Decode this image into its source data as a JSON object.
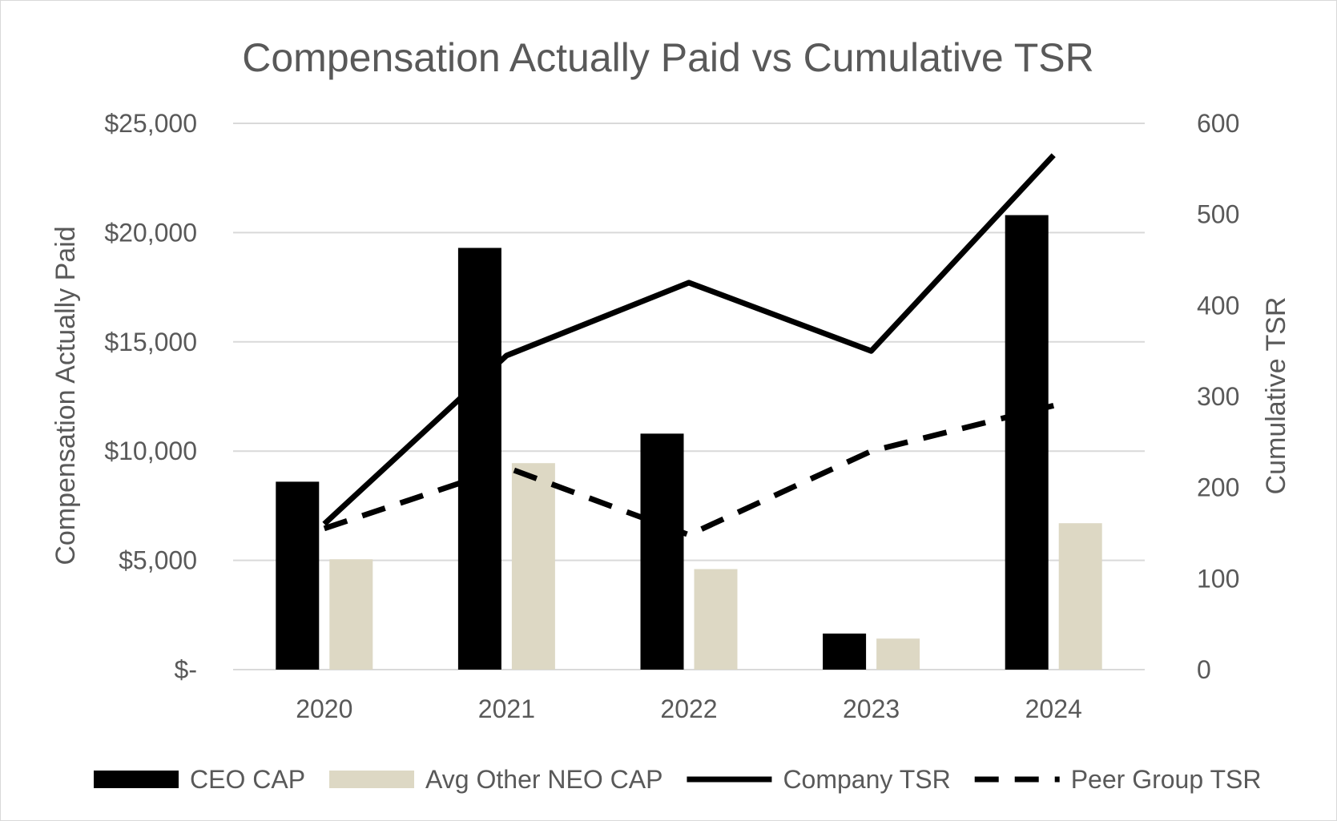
{
  "chart_data": {
    "type": "bar",
    "title": "Compensation Actually Paid vs Cumulative TSR",
    "categories": [
      "2020",
      "2021",
      "2022",
      "2023",
      "2024"
    ],
    "ylabel": "Compensation Actually Paid",
    "y2label": "Cumulative TSR",
    "ylim": [
      0,
      25000
    ],
    "y2lim": [
      0,
      600
    ],
    "yticks": [
      "$-",
      "$5,000",
      "$10,000",
      "$15,000",
      "$20,000",
      "$25,000"
    ],
    "y2ticks": [
      "0",
      "100",
      "200",
      "300",
      "400",
      "500",
      "600"
    ],
    "grid": true,
    "legend_position": "bottom",
    "series": [
      {
        "name": "CEO CAP",
        "kind": "bar",
        "axis": "left",
        "color": "#000000",
        "values": [
          8600,
          19300,
          10800,
          1650,
          20800
        ]
      },
      {
        "name": "Avg Other NEO CAP",
        "kind": "bar",
        "axis": "left",
        "color": "#ddd8c4",
        "values": [
          5050,
          9450,
          4600,
          1420,
          6700
        ]
      },
      {
        "name": "Company TSR",
        "kind": "line",
        "axis": "right",
        "color": "#000000",
        "dash": "solid",
        "values": [
          160,
          345,
          425,
          350,
          565
        ]
      },
      {
        "name": "Peer Group TSR",
        "kind": "line",
        "axis": "right",
        "color": "#000000",
        "dash": "dashed",
        "values": [
          155,
          222,
          148,
          240,
          290
        ]
      }
    ]
  }
}
